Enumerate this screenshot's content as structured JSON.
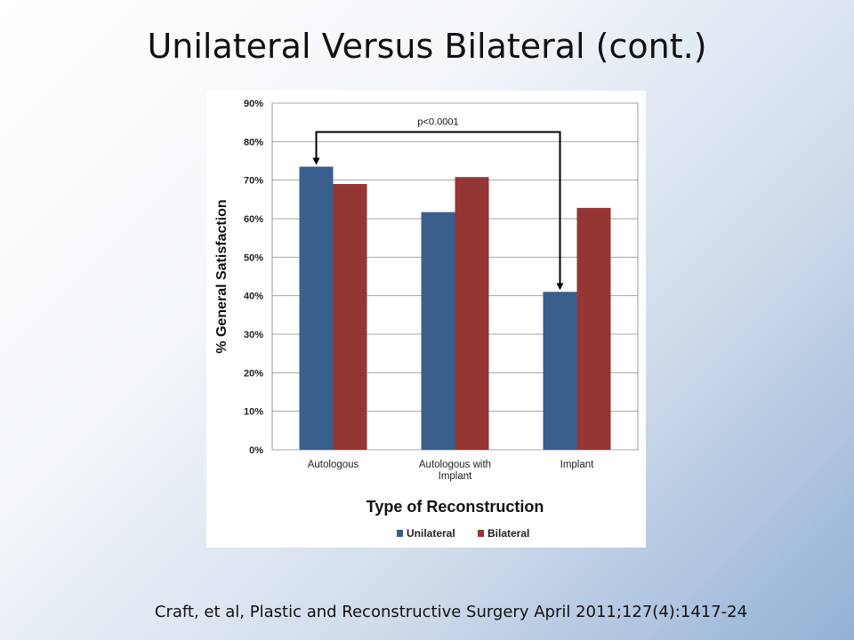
{
  "slide": {
    "title": "Unilateral Versus Bilateral (cont.)",
    "citation": "Craft, et al, Plastic and Reconstructive Surgery April 2011;127(4):1417-24"
  },
  "chart_data": {
    "type": "bar",
    "categories": [
      "Autologous",
      "Autologous with Implant",
      "Implant"
    ],
    "category_lines": [
      [
        "Autologous"
      ],
      [
        "Autologous with",
        "Implant"
      ],
      [
        "Implant"
      ]
    ],
    "series": [
      {
        "name": "Unilateral",
        "values": [
          73.5,
          61.7,
          41
        ],
        "color": "#3a5f8d"
      },
      {
        "name": "Bilateral",
        "values": [
          69,
          70.8,
          62.8
        ],
        "color": "#943634"
      }
    ],
    "ylim": [
      0,
      90
    ],
    "yticks": [
      0,
      10,
      20,
      30,
      40,
      50,
      60,
      70,
      80,
      90
    ],
    "ytick_labels": [
      "0%",
      "10%",
      "20%",
      "30%",
      "40%",
      "50%",
      "60%",
      "70%",
      "80%",
      "90%"
    ],
    "xlabel": "Type of Reconstruction",
    "ylabel": "% General Satisfaction",
    "annotation": "p<0.0001",
    "grid": true,
    "legend_position": "bottom"
  }
}
